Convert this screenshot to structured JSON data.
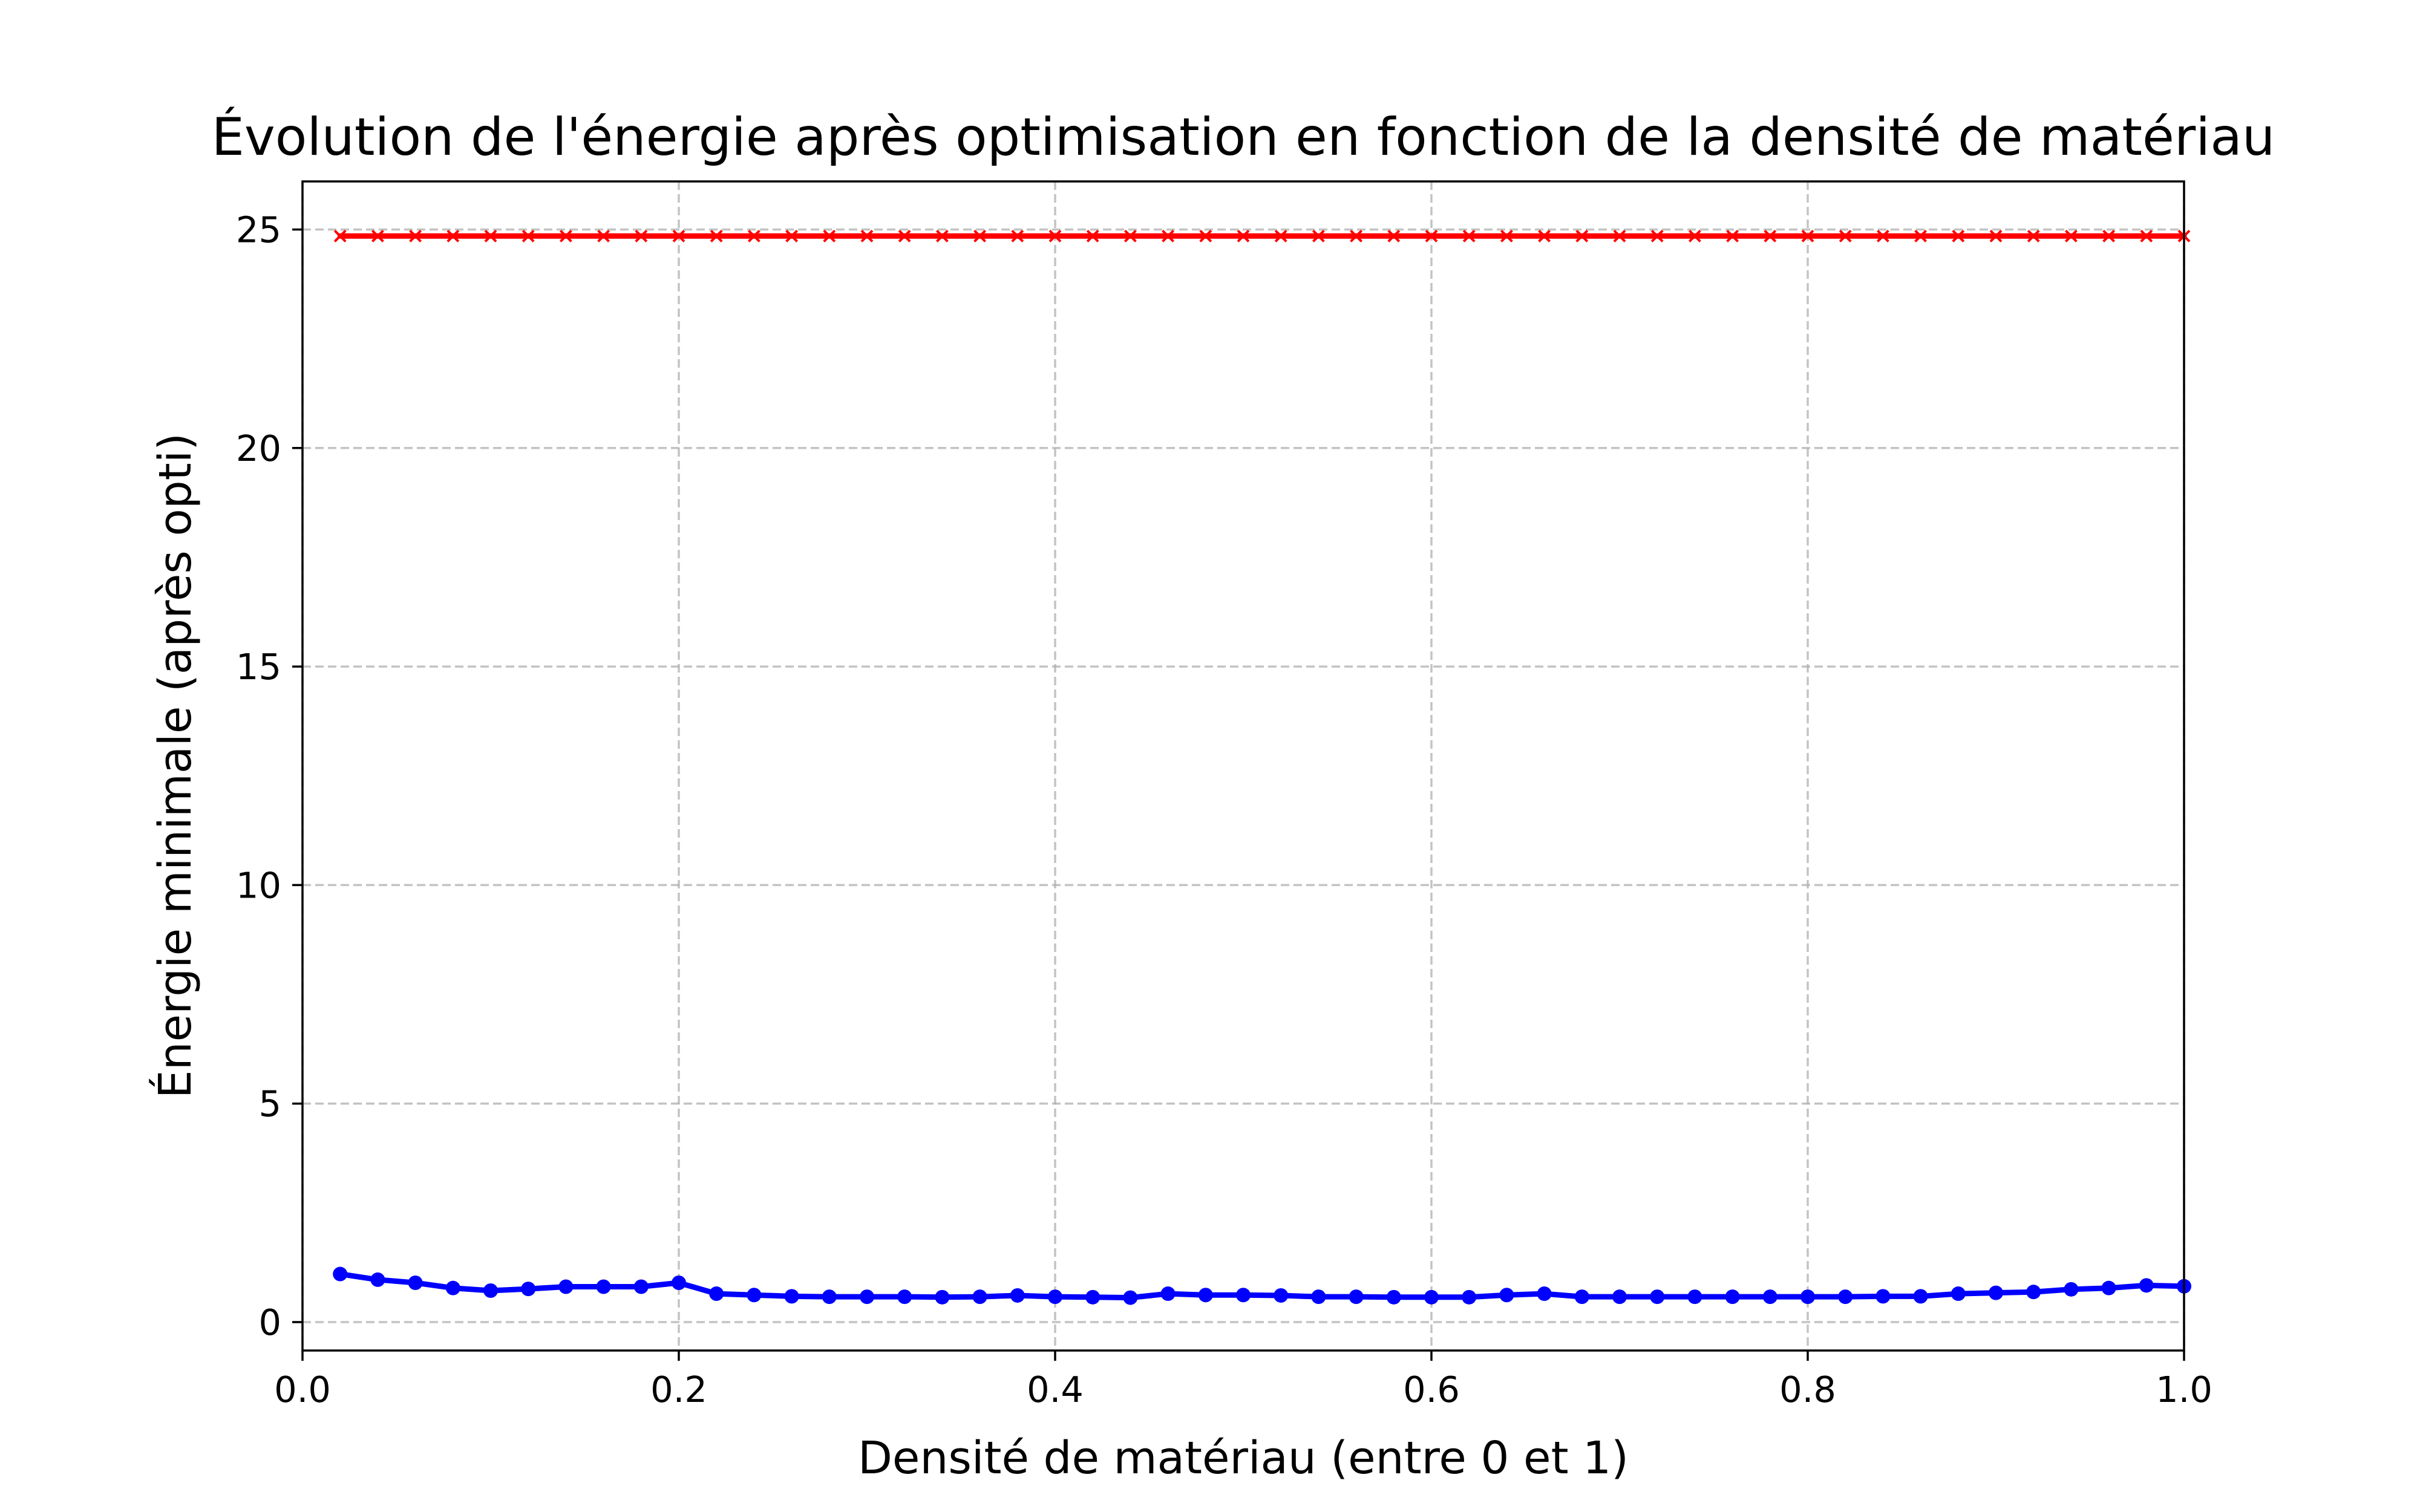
{
  "chart_data": {
    "type": "line",
    "title": "Évolution de l'énergie après optimisation en fonction de la densité de matériau",
    "xlabel": "Densité de matériau (entre 0 et 1)",
    "ylabel": "Énergie minimale (après opti)",
    "xlim": [
      0.0,
      1.0
    ],
    "ylim": [
      -0.65,
      26.1
    ],
    "grid": true,
    "x_ticks": [
      0.0,
      0.2,
      0.4,
      0.6,
      0.8,
      1.0
    ],
    "x_tick_labels": [
      "0.0",
      "0.2",
      "0.4",
      "0.6",
      "0.8",
      "1.0"
    ],
    "y_ticks": [
      0,
      5,
      10,
      15,
      20,
      25
    ],
    "y_tick_labels": [
      "0",
      "5",
      "10",
      "15",
      "20",
      "25"
    ],
    "x": [
      0.02,
      0.04,
      0.06,
      0.08,
      0.1,
      0.12,
      0.14,
      0.16,
      0.18,
      0.2,
      0.22,
      0.24,
      0.26,
      0.28,
      0.3,
      0.32,
      0.34,
      0.36,
      0.38,
      0.4,
      0.42,
      0.44,
      0.46,
      0.48,
      0.5,
      0.52,
      0.54,
      0.56,
      0.58,
      0.6,
      0.62,
      0.64,
      0.66,
      0.68,
      0.7,
      0.72,
      0.74,
      0.76,
      0.78,
      0.8,
      0.82,
      0.84,
      0.86,
      0.88,
      0.9,
      0.92,
      0.94,
      0.96,
      0.98,
      1.0
    ],
    "series": [
      {
        "color": "#ff0000",
        "marker": "x",
        "values": [
          24.85,
          24.85,
          24.85,
          24.85,
          24.85,
          24.85,
          24.85,
          24.85,
          24.85,
          24.85,
          24.85,
          24.85,
          24.85,
          24.85,
          24.85,
          24.85,
          24.85,
          24.85,
          24.85,
          24.85,
          24.85,
          24.85,
          24.85,
          24.85,
          24.85,
          24.85,
          24.85,
          24.85,
          24.85,
          24.85,
          24.85,
          24.85,
          24.85,
          24.85,
          24.85,
          24.85,
          24.85,
          24.85,
          24.85,
          24.85,
          24.85,
          24.85,
          24.85,
          24.85,
          24.85,
          24.85,
          24.85,
          24.85,
          24.85,
          24.85
        ]
      },
      {
        "color": "#0000ff",
        "marker": "o",
        "values": [
          1.1,
          0.97,
          0.9,
          0.78,
          0.72,
          0.76,
          0.81,
          0.81,
          0.81,
          0.9,
          0.65,
          0.62,
          0.59,
          0.58,
          0.58,
          0.58,
          0.57,
          0.58,
          0.61,
          0.58,
          0.57,
          0.56,
          0.65,
          0.62,
          0.62,
          0.61,
          0.58,
          0.58,
          0.57,
          0.57,
          0.57,
          0.62,
          0.65,
          0.58,
          0.58,
          0.58,
          0.58,
          0.58,
          0.58,
          0.58,
          0.58,
          0.59,
          0.59,
          0.65,
          0.67,
          0.69,
          0.75,
          0.78,
          0.84,
          0.82
        ]
      }
    ]
  }
}
